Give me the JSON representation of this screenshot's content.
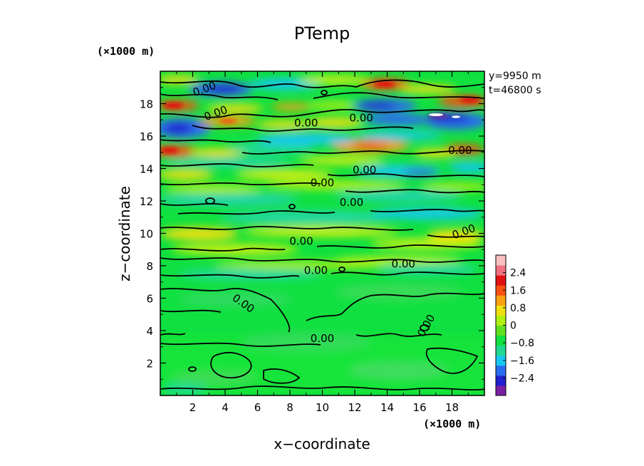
{
  "chart_data": {
    "type": "heatmap",
    "title": "PTemp",
    "xlabel": "x−coordinate",
    "ylabel": "z−coordinate",
    "x_unit": "(×1000 m)",
    "y_unit": "(×1000 m)",
    "annotation_y": "y=9950 m",
    "annotation_t": "t=46800 s",
    "xlim": [
      0,
      20
    ],
    "ylim": [
      0,
      20
    ],
    "x_ticks": [
      "2",
      "4",
      "6",
      "8",
      "10",
      "12",
      "14",
      "16",
      "18"
    ],
    "y_ticks": [
      "2",
      "4",
      "6",
      "8",
      "10",
      "12",
      "14",
      "16",
      "18"
    ],
    "colorbar": {
      "range": [
        -3.2,
        3.2
      ],
      "tick_labels": [
        "2.4",
        "1.6",
        "0.8",
        "0",
        "−0.8",
        "−1.6",
        "−2.4"
      ],
      "colors": [
        "#7a1fa2",
        "#2020d0",
        "#2a6cf0",
        "#18c8f0",
        "#20d890",
        "#10e040",
        "#60e020",
        "#b0f010",
        "#f0e010",
        "#f8a010",
        "#f85010",
        "#e01010",
        "#f07080",
        "#f8c0c0"
      ]
    },
    "contour_level": "0.00",
    "contour_label_count": 15,
    "grid": false
  }
}
